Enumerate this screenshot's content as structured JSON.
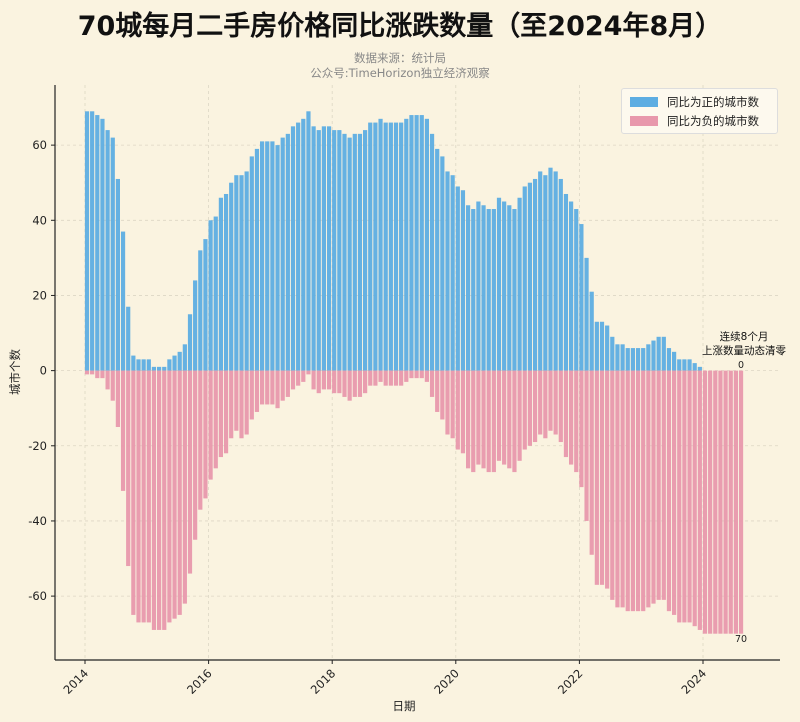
{
  "title": "70城每月二手房价格同比涨跌数量（至2024年8月）",
  "subtitle_lines": [
    "数据来源：统计局",
    "公众号:TimeHorizon独立经济观察"
  ],
  "colors": {
    "positive": "#5dade2",
    "negative": "#e898ac",
    "background": "#faf3e0"
  },
  "chart_data": {
    "type": "bar",
    "xlabel": "日期",
    "ylabel": "城市个数",
    "x_start": "2014-01",
    "x_end": "2024-08",
    "x_frequency": "monthly",
    "x_ticks": [
      "2014",
      "2016",
      "2018",
      "2020",
      "2022",
      "2024"
    ],
    "y_ticks": [
      -60,
      -40,
      -20,
      0,
      20,
      40,
      60
    ],
    "ylim": [
      -77,
      76
    ],
    "grid": true,
    "legend_position": "top-right",
    "series": [
      {
        "name": "同比为正的城市数",
        "color": "#5dade2",
        "values": [
          69,
          69,
          68,
          67,
          64,
          62,
          51,
          37,
          17,
          4,
          3,
          3,
          3,
          1,
          1,
          1,
          3,
          4,
          5,
          7,
          15,
          24,
          32,
          35,
          40,
          41,
          46,
          47,
          50,
          52,
          52,
          53,
          57,
          59,
          61,
          61,
          61,
          60,
          62,
          63,
          65,
          66,
          67,
          69,
          65,
          64,
          65,
          65,
          64,
          64,
          63,
          62,
          63,
          63,
          64,
          66,
          66,
          67,
          66,
          66,
          66,
          66,
          67,
          68,
          68,
          68,
          67,
          63,
          59,
          57,
          53,
          52,
          49,
          48,
          44,
          43,
          45,
          44,
          43,
          43,
          46,
          45,
          44,
          43,
          46,
          49,
          50,
          51,
          53,
          52,
          54,
          53,
          51,
          47,
          45,
          43,
          39,
          30,
          21,
          13,
          13,
          12,
          9,
          7,
          7,
          6,
          6,
          6,
          6,
          7,
          8,
          9,
          9,
          6,
          5,
          3,
          3,
          3,
          2,
          1,
          0,
          0,
          0,
          0,
          0,
          0,
          0,
          0
        ]
      },
      {
        "name": "同比为负的城市数",
        "color": "#e898ac",
        "values": [
          -1,
          -1,
          -2,
          -2,
          -5,
          -8,
          -15,
          -32,
          -52,
          -65,
          -67,
          -67,
          -67,
          -69,
          -69,
          -69,
          -67,
          -66,
          -65,
          -62,
          -54,
          -45,
          -37,
          -34,
          -29,
          -26,
          -23,
          -22,
          -18,
          -16,
          -18,
          -17,
          -13,
          -11,
          -9,
          -9,
          -9,
          -10,
          -8,
          -7,
          -5,
          -4,
          -3,
          -1,
          -5,
          -6,
          -5,
          -5,
          -6,
          -6,
          -7,
          -8,
          -7,
          -7,
          -6,
          -4,
          -4,
          -3,
          -4,
          -4,
          -4,
          -4,
          -3,
          -2,
          -2,
          -2,
          -3,
          -7,
          -11,
          -13,
          -17,
          -18,
          -21,
          -22,
          -26,
          -27,
          -25,
          -26,
          -27,
          -27,
          -24,
          -25,
          -26,
          -27,
          -24,
          -21,
          -20,
          -19,
          -17,
          -18,
          -16,
          -17,
          -19,
          -23,
          -25,
          -27,
          -31,
          -40,
          -49,
          -57,
          -57,
          -58,
          -61,
          -63,
          -63,
          -64,
          -64,
          -64,
          -64,
          -63,
          -62,
          -61,
          -61,
          -64,
          -65,
          -67,
          -67,
          -67,
          -68,
          -69,
          -70,
          -70,
          -70,
          -70,
          -70,
          -70,
          -70,
          -70
        ]
      }
    ],
    "annotations": {
      "note_lines": [
        "连续8个月",
        "上涨数量动态清零"
      ],
      "last_positive_label": "0",
      "last_negative_label": "70"
    }
  }
}
